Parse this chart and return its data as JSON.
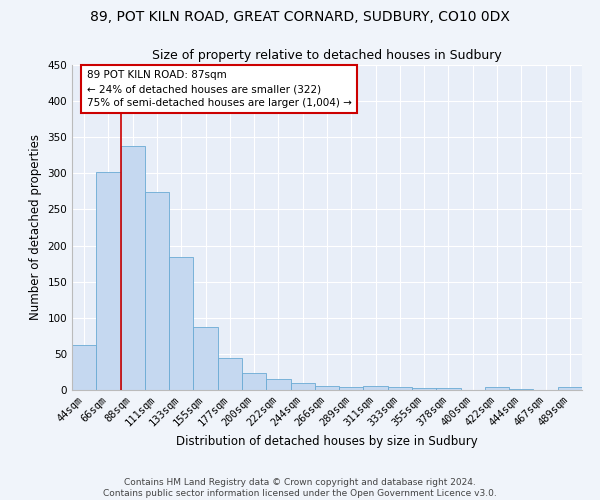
{
  "title1": "89, POT KILN ROAD, GREAT CORNARD, SUDBURY, CO10 0DX",
  "title2": "Size of property relative to detached houses in Sudbury",
  "xlabel": "Distribution of detached houses by size in Sudbury",
  "ylabel": "Number of detached properties",
  "categories": [
    "44sqm",
    "66sqm",
    "88sqm",
    "111sqm",
    "133sqm",
    "155sqm",
    "177sqm",
    "200sqm",
    "222sqm",
    "244sqm",
    "266sqm",
    "289sqm",
    "311sqm",
    "333sqm",
    "355sqm",
    "378sqm",
    "400sqm",
    "422sqm",
    "444sqm",
    "467sqm",
    "489sqm"
  ],
  "values": [
    62,
    302,
    338,
    274,
    184,
    87,
    45,
    24,
    15,
    10,
    6,
    4,
    5,
    4,
    3,
    3,
    0,
    4,
    1,
    0,
    4
  ],
  "bar_color": "#c5d8f0",
  "bar_edge_color": "#6aaad4",
  "highlight_line_index": 2,
  "highlight_line_color": "#cc0000",
  "annotation_text": "89 POT KILN ROAD: 87sqm\n← 24% of detached houses are smaller (322)\n75% of semi-detached houses are larger (1,004) →",
  "annotation_box_color": "#ffffff",
  "annotation_box_edge_color": "#cc0000",
  "ylim": [
    0,
    450
  ],
  "yticks": [
    0,
    50,
    100,
    150,
    200,
    250,
    300,
    350,
    400,
    450
  ],
  "footer": "Contains HM Land Registry data © Crown copyright and database right 2024.\nContains public sector information licensed under the Open Government Licence v3.0.",
  "bg_color": "#f0f4fa",
  "plot_bg_color": "#e8eef8",
  "grid_color": "#ffffff",
  "title1_fontsize": 10,
  "title2_fontsize": 9,
  "xlabel_fontsize": 8.5,
  "ylabel_fontsize": 8.5,
  "tick_fontsize": 7.5,
  "footer_fontsize": 6.5
}
